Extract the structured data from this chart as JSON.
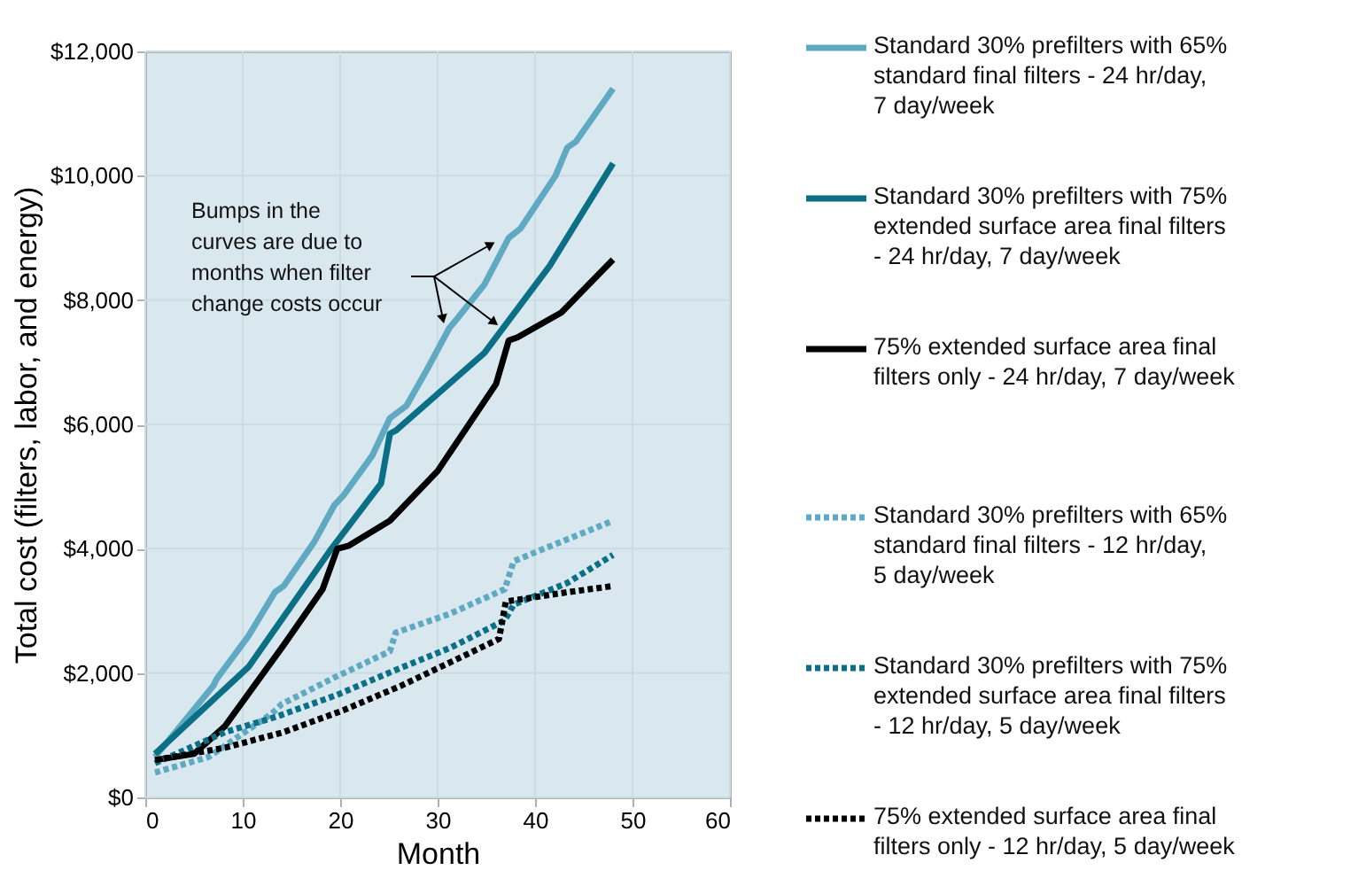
{
  "chart_data": {
    "type": "line",
    "xlabel": "Month",
    "ylabel": "Total cost (filters, labor, and energy)",
    "xlim": [
      0,
      60
    ],
    "xticks": [
      0,
      10,
      20,
      30,
      40,
      50,
      60
    ],
    "ylim": [
      0,
      12000
    ],
    "yticks": [
      {
        "value": 0,
        "label": "$0"
      },
      {
        "value": 2000,
        "label": "$2,000"
      },
      {
        "value": 4000,
        "label": "$4,000"
      },
      {
        "value": 6000,
        "label": "$6,000"
      },
      {
        "value": 8000,
        "label": "$8,000"
      },
      {
        "value": 10000,
        "label": "$10,000"
      },
      {
        "value": 12000,
        "label": "$12,000"
      }
    ],
    "grid": true,
    "legend": "right",
    "annotations": [
      "Bumps in the curves are due to months when filter change costs occur"
    ],
    "series": [
      {
        "name": "Standard 30% prefilters with 65% standard final filters - 24 hr/day, 7 day/week",
        "color": "#5fa9c2",
        "line_style": "solid",
        "x": [
          1,
          7,
          7.3,
          10.6,
          13.3,
          14.2,
          17.3,
          19.4,
          20.3,
          23.3,
          25.1,
          26.8,
          28.8,
          31.2,
          32,
          34.8,
          37.3,
          38.5,
          42.1,
          43.3,
          44.2,
          48
        ],
        "values": [
          650,
          1800,
          1900,
          2600,
          3300,
          3400,
          4100,
          4700,
          4850,
          5500,
          6100,
          6300,
          6850,
          7550,
          7700,
          8250,
          9000,
          9150,
          10000,
          10450,
          10550,
          11400
        ]
      },
      {
        "name": "Standard 30% prefilters with 75% extended surface area final filters - 24 hr/day, 7 day/week",
        "color": "#0b6f86",
        "line_style": "solid",
        "x": [
          1,
          10.6,
          19.1,
          24.2,
          25.1,
          25.7,
          34.8,
          41.5,
          48
        ],
        "values": [
          700,
          2100,
          4000,
          5050,
          5850,
          5900,
          7150,
          8550,
          10200
        ]
      },
      {
        "name": "75% extended surface area final filters only - 24 hr/day, 7 day/week",
        "color": "#000000",
        "line_style": "solid",
        "x": [
          1,
          5,
          8.2,
          14.2,
          18.2,
          19.7,
          20.9,
          25.1,
          30,
          36,
          37.3,
          38.2,
          42.7,
          48
        ],
        "values": [
          600,
          700,
          1150,
          2450,
          3350,
          4000,
          4050,
          4450,
          5250,
          6650,
          7350,
          7400,
          7800,
          8650
        ]
      },
      {
        "name": "Standard 30% prefilters with 65% standard final filters - 12 hr/day, 5 day/week",
        "color": "#5fa9c2",
        "line_style": "dotted",
        "x": [
          1,
          6.5,
          13,
          14,
          19.7,
          25.1,
          25.7,
          31.2,
          36.9,
          37.8,
          43.3,
          48
        ],
        "values": [
          400,
          650,
          1350,
          1500,
          1950,
          2350,
          2650,
          2950,
          3350,
          3800,
          4150,
          4450
        ]
      },
      {
        "name": "Standard 30% prefilters with 75% extended surface area final filters - 12 hr/day, 5 day/week",
        "color": "#0b6f86",
        "line_style": "dotted",
        "x": [
          1,
          8.2,
          13.5,
          19.7,
          25.7,
          31.2,
          36.9,
          37.8,
          43.3,
          48
        ],
        "values": [
          550,
          1050,
          1300,
          1650,
          2050,
          2400,
          2850,
          3100,
          3450,
          3900
        ]
      },
      {
        "name": "75% extended surface area final filters only - 12 hr/day, 5 day/week",
        "color": "#000000",
        "line_style": "dotted",
        "x": [
          1,
          8.2,
          14.2,
          20.3,
          26.3,
          33,
          36.3,
          37,
          43.3,
          48
        ],
        "values": [
          600,
          800,
          1050,
          1400,
          1800,
          2300,
          2550,
          3150,
          3300,
          3400
        ]
      }
    ]
  }
}
